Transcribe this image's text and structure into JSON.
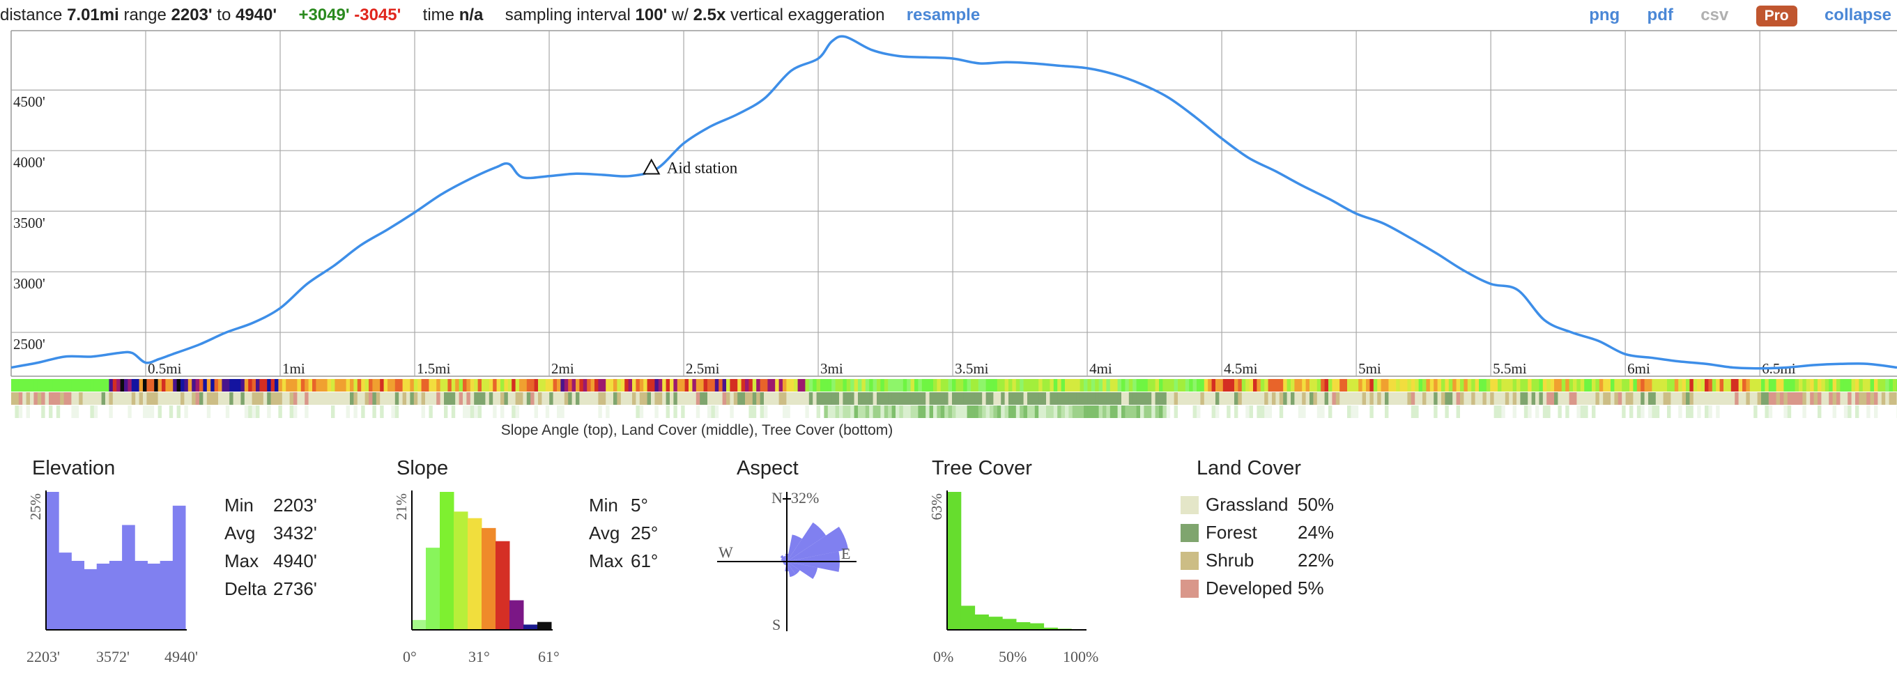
{
  "header": {
    "distance_label": "distance",
    "distance_value": "7.01mi",
    "range_label": "range",
    "range_min": "2203'",
    "to_label": "to",
    "range_max": "4940'",
    "gain": "+3049'",
    "loss": "-3045'",
    "time_label": "time",
    "time_value": "n/a",
    "sampling_label": "sampling interval",
    "sampling_value": "100'",
    "w_label": "w/",
    "exaggeration_value": "2.5x",
    "exaggeration_label": "vertical exaggeration",
    "resample_link": "resample",
    "png_link": "png",
    "pdf_link": "pdf",
    "csv_link": "csv",
    "pro_badge": "Pro",
    "collapse_link": "collapse"
  },
  "colors": {
    "profile_line": "#3d8ee8",
    "link": "#4a87d6",
    "gain": "#2a8a1e",
    "loss": "#e0261d",
    "pro_badge": "#c0562f",
    "histogram_fill": "#8080f0",
    "grassland": "#e4e6c8",
    "forest": "#7fa56e",
    "shrub": "#ccbd85",
    "developed": "#d9978a"
  },
  "strips_caption": "Slope Angle (top), Land Cover (middle), Tree Cover (bottom)",
  "chart_data": [
    {
      "type": "line",
      "title": "",
      "xlabel": "",
      "ylabel": "",
      "xlim": [
        0,
        7.01
      ],
      "ylim": [
        2203,
        4940
      ],
      "grid": true,
      "x_tick_labels": [
        "0.5mi",
        "1mi",
        "1.5mi",
        "2mi",
        "2.5mi",
        "3mi",
        "3.5mi",
        "4mi",
        "4.5mi",
        "5mi",
        "5.5mi",
        "6mi",
        "6.5mi"
      ],
      "x_ticks": [
        0.5,
        1,
        1.5,
        2,
        2.5,
        3,
        3.5,
        4,
        4.5,
        5,
        5.5,
        6,
        6.5
      ],
      "y_tick_labels": [
        "2500'",
        "3000'",
        "3500'",
        "4000'",
        "4500'"
      ],
      "y_ticks": [
        2500,
        3000,
        3500,
        4000,
        4500
      ],
      "series": [
        {
          "x": [
            0,
            0.1,
            0.2,
            0.3,
            0.4,
            0.45,
            0.5,
            0.55,
            0.6,
            0.7,
            0.8,
            0.9,
            1.0,
            1.1,
            1.2,
            1.3,
            1.4,
            1.5,
            1.6,
            1.7,
            1.8,
            1.85,
            1.9,
            2.0,
            2.1,
            2.2,
            2.3,
            2.4,
            2.5,
            2.6,
            2.7,
            2.8,
            2.9,
            3.0,
            3.05,
            3.1,
            3.2,
            3.3,
            3.4,
            3.5,
            3.6,
            3.7,
            3.8,
            3.9,
            4.0,
            4.1,
            4.2,
            4.3,
            4.4,
            4.5,
            4.6,
            4.7,
            4.8,
            4.9,
            5.0,
            5.1,
            5.2,
            5.3,
            5.4,
            5.5,
            5.6,
            5.7,
            5.8,
            5.9,
            6.0,
            6.1,
            6.2,
            6.3,
            6.4,
            6.5,
            6.6,
            6.7,
            6.8,
            6.9,
            7.01
          ],
          "y": [
            2210,
            2250,
            2300,
            2300,
            2330,
            2330,
            2250,
            2280,
            2320,
            2400,
            2500,
            2580,
            2700,
            2900,
            3050,
            3220,
            3350,
            3490,
            3640,
            3760,
            3860,
            3890,
            3780,
            3790,
            3810,
            3800,
            3790,
            3850,
            4060,
            4200,
            4300,
            4430,
            4660,
            4760,
            4900,
            4940,
            4830,
            4780,
            4770,
            4760,
            4720,
            4730,
            4720,
            4700,
            4680,
            4630,
            4550,
            4440,
            4280,
            4100,
            3940,
            3830,
            3710,
            3600,
            3480,
            3400,
            3280,
            3150,
            3010,
            2900,
            2850,
            2600,
            2500,
            2430,
            2320,
            2290,
            2260,
            2240,
            2210,
            2203,
            2210,
            2230,
            2240,
            2240,
            2210
          ]
        }
      ],
      "annotations": [
        {
          "x": 2.38,
          "y": 3860,
          "text": "Aid station"
        }
      ]
    },
    {
      "type": "bar",
      "title": "Elevation",
      "ylabel": "25%",
      "x_tick_labels": [
        "2203'",
        "3572'",
        "4940'"
      ],
      "values": [
        25,
        14,
        12.5,
        11,
        12,
        12.5,
        19,
        12.5,
        12,
        12.5,
        22.5
      ],
      "ylim": [
        0,
        25
      ]
    },
    {
      "type": "bar",
      "title": "Slope",
      "ylabel": "21%",
      "x_tick_labels": [
        "0°",
        "31°",
        "61°"
      ],
      "values": [
        1.5,
        12.5,
        21,
        18,
        17,
        15.5,
        13.5,
        4.5,
        0.8,
        1.2
      ],
      "colors": [
        "#a6f98a",
        "#88f55b",
        "#7ef030",
        "#b8ef3a",
        "#f1de3d",
        "#ef8a2a",
        "#d52f25",
        "#7b1786",
        "#1a1a8f",
        "#101010"
      ],
      "ylim": [
        0,
        21
      ]
    },
    {
      "type": "pie",
      "title": "Aspect",
      "max_label": "32%",
      "direction_labels": [
        "N",
        "E",
        "S",
        "W"
      ],
      "sector_values": [
        4,
        14,
        24,
        32,
        27,
        16,
        8,
        8,
        5,
        2,
        2,
        2,
        2,
        3,
        4,
        3
      ]
    },
    {
      "type": "bar",
      "title": "Tree Cover",
      "ylabel": "63%",
      "x_tick_labels": [
        "0%",
        "50%",
        "100%"
      ],
      "values": [
        63,
        11,
        7,
        6,
        5,
        3.5,
        3,
        1,
        0.5,
        0.3
      ],
      "ylim": [
        0,
        63
      ]
    },
    {
      "type": "table",
      "title": "Land Cover",
      "rows": [
        {
          "name": "Grassland",
          "value": "50%"
        },
        {
          "name": "Forest",
          "value": "24%"
        },
        {
          "name": "Shrub",
          "value": "22%"
        },
        {
          "name": "Developed",
          "value": "5%"
        }
      ]
    }
  ],
  "elevation_stats": [
    {
      "label": "Min",
      "value": "2203'"
    },
    {
      "label": "Avg",
      "value": "3432'"
    },
    {
      "label": "Max",
      "value": "4940'"
    },
    {
      "label": "Delta",
      "value": "2736'"
    }
  ],
  "slope_stats": [
    {
      "label": "Min",
      "value": "5°"
    },
    {
      "label": "Avg",
      "value": "25°"
    },
    {
      "label": "Max",
      "value": "61°"
    }
  ]
}
